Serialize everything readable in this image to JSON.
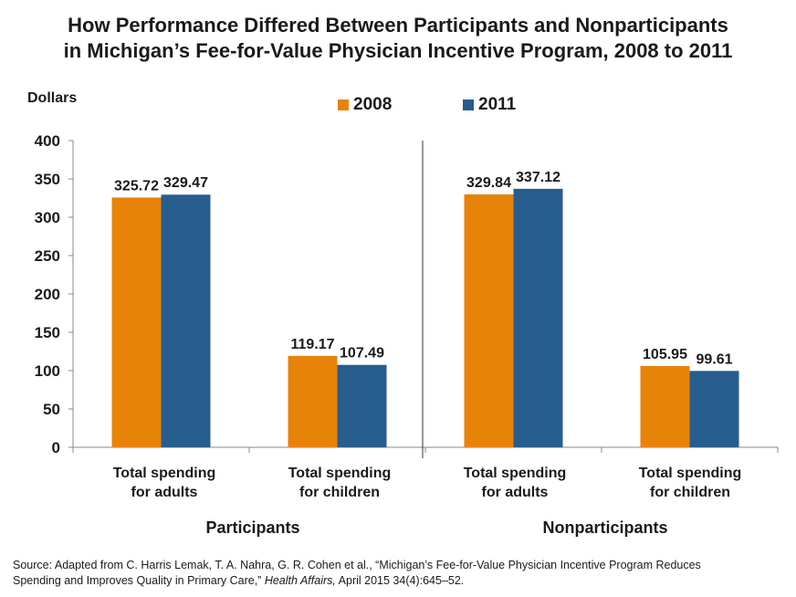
{
  "title_line1": "How Performance Differed Between Participants and Nonparticipants",
  "title_line2": "in Michigan’s Fee-for-Value Physician Incentive Program, 2008 to 2011",
  "unit_label": "Dollars",
  "source": {
    "prefix": "Source: Adapted from C. Harris Lemak, T. A. Nahra, G. R. Cohen et al., “Michigan’s Fee-for-Value Physician Incentive Program Reduces",
    "line2_start": "Spending and Improves Quality in Primary Care,”",
    "journal": "Health Affairs,",
    "line2_end": "April 2015 34(4):645–52."
  },
  "colors": {
    "2008": "#E8830A",
    "2011": "#275D8E",
    "axis": "#888888",
    "divider": "#333333"
  },
  "chart_data": {
    "type": "bar",
    "title": "How Performance Differed Between Participants and Nonparticipants in Michigan’s Fee-for-Value Physician Incentive Program, 2008 to 2011",
    "ylabel": "Dollars",
    "ylim": [
      0,
      400
    ],
    "yticks": [
      0,
      50,
      100,
      150,
      200,
      250,
      300,
      350,
      400
    ],
    "legend_position": "top-center",
    "groups": [
      "Participants",
      "Nonparticipants"
    ],
    "categories": [
      "Total spending for adults",
      "Total spending for children",
      "Total spending for adults",
      "Total spending for children"
    ],
    "category_lines": [
      [
        "Total spending",
        "for adults"
      ],
      [
        "Total spending",
        "for children"
      ],
      [
        "Total spending",
        "for adults"
      ],
      [
        "Total spending",
        "for children"
      ]
    ],
    "series": [
      {
        "name": "2008",
        "values": [
          325.72,
          119.17,
          329.84,
          105.95
        ],
        "labels": [
          "325.72",
          "119.17",
          "329.84",
          "105.95"
        ]
      },
      {
        "name": "2011",
        "values": [
          329.47,
          107.49,
          337.12,
          99.61
        ],
        "labels": [
          "329.47",
          "107.49",
          "337.12",
          "99.61"
        ]
      }
    ]
  }
}
